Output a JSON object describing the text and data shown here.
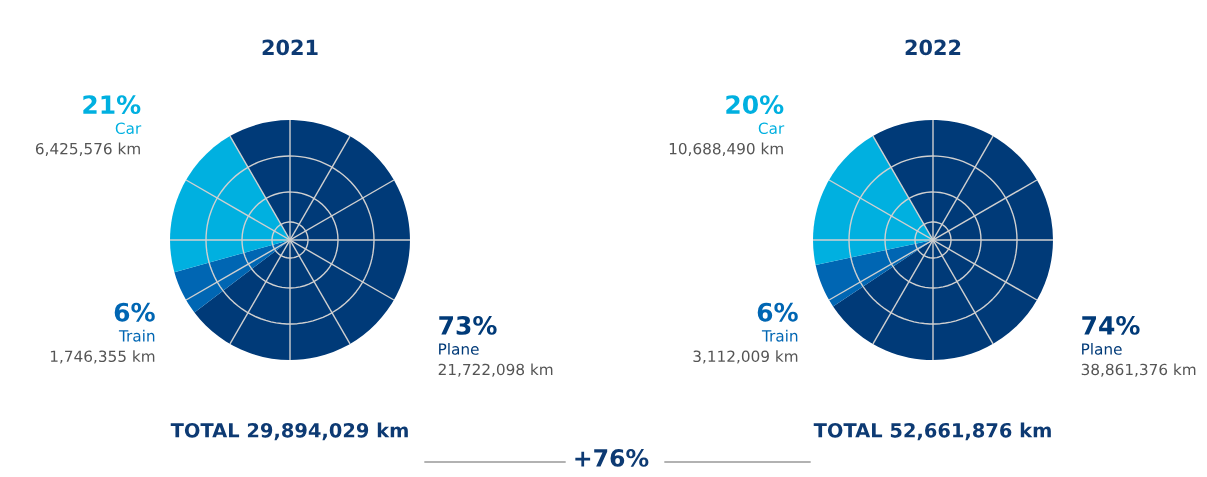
{
  "chart_data": [
    {
      "type": "pie",
      "title": "2021",
      "categories": [
        "Plane",
        "Train",
        "Car"
      ],
      "values": [
        73,
        6,
        21
      ],
      "colors": [
        "#003a78",
        "#0066b3",
        "#00b0e0"
      ],
      "value_labels": [
        "73%",
        "6%",
        "21%"
      ],
      "grid": true,
      "annotations": [
        "21,722,098 km",
        "1,746,355 km",
        "6,425,576 km",
        "TOTAL 29,894,029 km"
      ]
    },
    {
      "type": "pie",
      "title": "2022",
      "categories": [
        "Plane",
        "Train",
        "Car"
      ],
      "values": [
        74,
        6,
        20
      ],
      "colors": [
        "#003a78",
        "#0066b3",
        "#00b0e0"
      ],
      "value_labels": [
        "74%",
        "6%",
        "20%"
      ],
      "grid": true,
      "annotations": [
        "38,861,376 km",
        "3,112,009 km",
        "10,688,490 km",
        "TOTAL 52,661,876 km",
        "+76%"
      ]
    }
  ]
}
